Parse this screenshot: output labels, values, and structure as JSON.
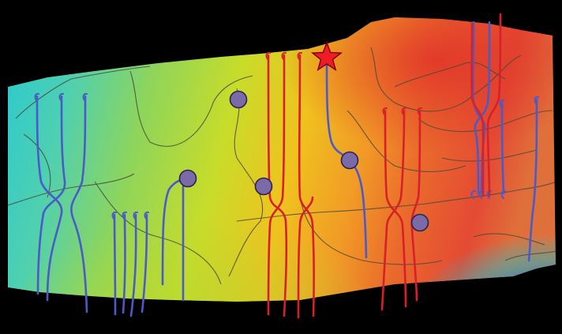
{
  "colors": {
    "background": "#000000",
    "surface_low": "#1fc6d8",
    "surface_mid": "#b8dc2a",
    "surface_high": "#e23a2a",
    "contour": "#4a4a3a",
    "well_blue": "#4a5bc8",
    "well_red": "#d8202a",
    "marker_fill": "#7b6aa8",
    "star": "#ee1c24"
  },
  "map": {
    "symbols": [
      "star-marker",
      "circle-marker"
    ],
    "well_colors": [
      "blue",
      "red"
    ]
  }
}
